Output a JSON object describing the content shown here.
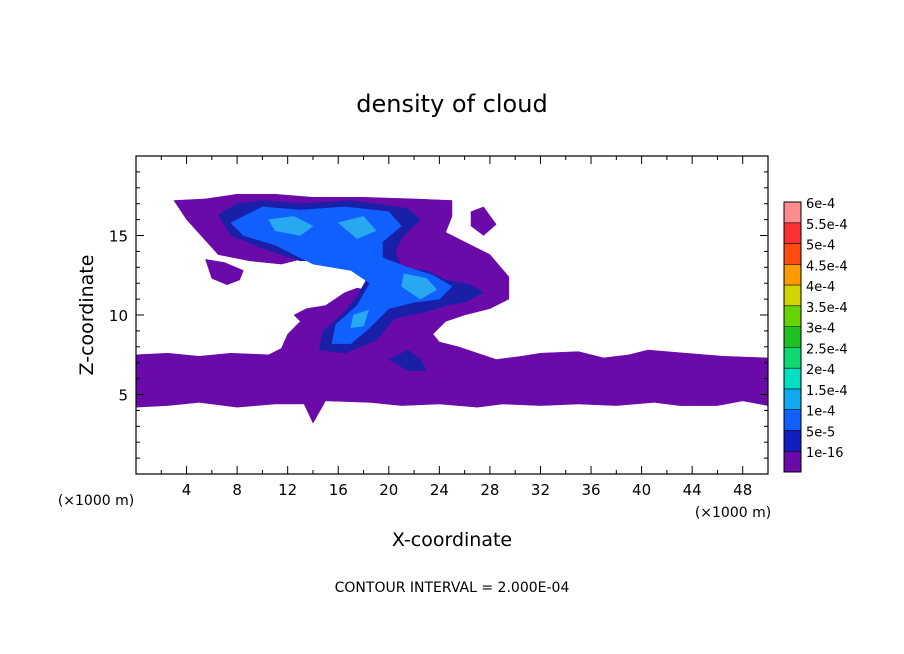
{
  "chart_data": {
    "type": "heatmap",
    "title": "density of cloud",
    "xlabel": "X-coordinate",
    "ylabel": "Z-coordinate",
    "x_unit_label": "(×1000 m)",
    "y_unit_label": "(×1000 m)",
    "xlim": [
      0,
      50
    ],
    "ylim": [
      0,
      20
    ],
    "x_ticks": [
      4,
      8,
      12,
      16,
      20,
      24,
      28,
      32,
      36,
      40,
      44,
      48
    ],
    "y_ticks": [
      5,
      10,
      15
    ],
    "footer": "CONTOUR INTERVAL = 2.000E-04",
    "colorbar": {
      "labels": [
        "6e-4",
        "5.5e-4",
        "5e-4",
        "4.5e-4",
        "4e-4",
        "3.5e-4",
        "3e-4",
        "2.5e-4",
        "2e-4",
        "1.5e-4",
        "1e-4",
        "5e-5",
        "1e-16"
      ],
      "colors": [
        "#ff8c8c",
        "#ff3030",
        "#ff4a10",
        "#ff9a00",
        "#d4d400",
        "#66d400",
        "#20c020",
        "#10d870",
        "#00e0c0",
        "#10a8f0",
        "#1060ff",
        "#1020c0",
        "#6a0aa8"
      ]
    },
    "regions": [
      {
        "name": "cloud-base-1e-16",
        "level": "1e-16",
        "color": "#6a0aa8",
        "polygons": [
          [
            [
              0.0,
              7.5
            ],
            [
              2.5,
              7.6
            ],
            [
              5.0,
              7.4
            ],
            [
              7.5,
              7.6
            ],
            [
              10.5,
              7.5
            ],
            [
              11.5,
              7.9
            ],
            [
              12.0,
              8.8
            ],
            [
              13.0,
              9.6
            ],
            [
              12.5,
              10.0
            ],
            [
              13.5,
              10.4
            ],
            [
              15.0,
              10.6
            ],
            [
              16.5,
              11.4
            ],
            [
              17.5,
              11.7
            ],
            [
              18.5,
              11.5
            ],
            [
              19.0,
              11.0
            ],
            [
              20.0,
              10.0
            ],
            [
              21.0,
              10.4
            ],
            [
              21.5,
              11.4
            ],
            [
              20.5,
              12.2
            ],
            [
              18.5,
              13.0
            ],
            [
              16.0,
              13.8
            ],
            [
              13.5,
              13.6
            ],
            [
              11.5,
              13.2
            ],
            [
              9.0,
              13.4
            ],
            [
              6.5,
              13.8
            ],
            [
              4.0,
              16.0
            ],
            [
              3.0,
              17.2
            ],
            [
              5.5,
              17.3
            ],
            [
              8.0,
              17.6
            ],
            [
              11.0,
              17.6
            ],
            [
              14.0,
              17.4
            ],
            [
              18.0,
              17.4
            ],
            [
              22.0,
              17.3
            ],
            [
              25.0,
              17.2
            ],
            [
              25.0,
              16.2
            ],
            [
              24.5,
              15.2
            ],
            [
              25.5,
              14.8
            ],
            [
              28.0,
              13.8
            ],
            [
              29.5,
              12.4
            ],
            [
              29.5,
              11.0
            ],
            [
              28.0,
              10.4
            ],
            [
              26.0,
              10.0
            ],
            [
              24.5,
              9.6
            ],
            [
              23.5,
              8.8
            ],
            [
              24.0,
              8.3
            ],
            [
              25.5,
              8.0
            ],
            [
              28.5,
              7.2
            ],
            [
              30.5,
              7.4
            ],
            [
              32.0,
              7.6
            ],
            [
              35.0,
              7.7
            ],
            [
              37.0,
              7.3
            ],
            [
              39.0,
              7.5
            ],
            [
              40.5,
              7.8
            ],
            [
              43.5,
              7.6
            ],
            [
              46.5,
              7.4
            ],
            [
              50.0,
              7.3
            ],
            [
              50.0,
              4.3
            ],
            [
              48.0,
              4.6
            ],
            [
              46.0,
              4.3
            ],
            [
              43.0,
              4.3
            ],
            [
              41.0,
              4.5
            ],
            [
              38.0,
              4.3
            ],
            [
              35.0,
              4.4
            ],
            [
              32.0,
              4.3
            ],
            [
              29.0,
              4.4
            ],
            [
              27.0,
              4.2
            ],
            [
              24.0,
              4.4
            ],
            [
              21.0,
              4.3
            ],
            [
              18.5,
              4.5
            ],
            [
              15.0,
              4.6
            ],
            [
              14.0,
              3.2
            ],
            [
              13.3,
              4.4
            ],
            [
              11.0,
              4.4
            ],
            [
              8.0,
              4.2
            ],
            [
              5.0,
              4.5
            ],
            [
              2.5,
              4.3
            ],
            [
              0.0,
              4.2
            ]
          ],
          [
            [
              5.5,
              13.5
            ],
            [
              7.0,
              13.3
            ],
            [
              8.5,
              12.8
            ],
            [
              8.2,
              12.2
            ],
            [
              7.2,
              11.9
            ],
            [
              6.0,
              12.3
            ]
          ],
          [
            [
              26.5,
              16.5
            ],
            [
              27.5,
              16.8
            ],
            [
              28.5,
              15.7
            ],
            [
              27.5,
              15.0
            ],
            [
              26.5,
              15.6
            ]
          ]
        ]
      },
      {
        "name": "cloud-5e-5",
        "level": "5e-5",
        "color": "#1a1fa8",
        "polygons": [
          [
            [
              6.5,
              16.3
            ],
            [
              8.0,
              17.0
            ],
            [
              10.0,
              17.2
            ],
            [
              13.0,
              17.0
            ],
            [
              17.0,
              17.2
            ],
            [
              21.5,
              16.7
            ],
            [
              22.5,
              16.0
            ],
            [
              21.0,
              14.8
            ],
            [
              20.5,
              14.0
            ],
            [
              21.0,
              13.0
            ],
            [
              23.0,
              12.8
            ],
            [
              24.5,
              12.2
            ],
            [
              26.5,
              11.9
            ],
            [
              27.5,
              11.4
            ],
            [
              26.0,
              10.8
            ],
            [
              24.5,
              10.6
            ],
            [
              23.0,
              10.2
            ],
            [
              20.5,
              9.8
            ],
            [
              19.0,
              8.4
            ],
            [
              16.5,
              7.6
            ],
            [
              14.5,
              7.8
            ],
            [
              14.8,
              9.0
            ],
            [
              16.5,
              10.2
            ],
            [
              17.5,
              11.2
            ],
            [
              18.5,
              12.6
            ],
            [
              17.5,
              13.2
            ],
            [
              15.5,
              13.5
            ],
            [
              13.0,
              13.4
            ],
            [
              10.0,
              14.2
            ],
            [
              7.5,
              15.0
            ]
          ],
          [
            [
              21.5,
              7.8
            ],
            [
              22.5,
              7.2
            ],
            [
              23.0,
              6.5
            ],
            [
              21.5,
              6.5
            ],
            [
              20.0,
              7.2
            ]
          ]
        ]
      },
      {
        "name": "cloud-1e-4",
        "level": "1e-4",
        "color": "#1060ff",
        "polygons": [
          [
            [
              7.5,
              15.8
            ],
            [
              10.0,
              16.8
            ],
            [
              13.0,
              16.6
            ],
            [
              16.5,
              16.8
            ],
            [
              20.0,
              16.5
            ],
            [
              21.0,
              15.6
            ],
            [
              19.5,
              14.6
            ],
            [
              19.5,
              13.6
            ],
            [
              21.5,
              13.0
            ],
            [
              23.5,
              12.5
            ],
            [
              25.0,
              11.8
            ],
            [
              24.0,
              11.0
            ],
            [
              22.0,
              10.8
            ],
            [
              20.0,
              10.4
            ],
            [
              18.5,
              9.2
            ],
            [
              17.0,
              8.2
            ],
            [
              15.5,
              8.2
            ],
            [
              15.8,
              9.4
            ],
            [
              17.5,
              10.6
            ],
            [
              18.5,
              12.0
            ],
            [
              17.0,
              12.8
            ],
            [
              14.0,
              13.2
            ],
            [
              11.0,
              14.4
            ],
            [
              8.5,
              15.0
            ]
          ]
        ]
      },
      {
        "name": "cloud-1.5e-4",
        "level": "1.5e-4",
        "color": "#28a8f0",
        "polygons": [
          [
            [
              10.5,
              16.0
            ],
            [
              12.5,
              16.2
            ],
            [
              14.0,
              15.6
            ],
            [
              13.0,
              15.0
            ],
            [
              11.0,
              15.3
            ]
          ],
          [
            [
              16.0,
              15.8
            ],
            [
              18.0,
              16.2
            ],
            [
              19.0,
              15.3
            ],
            [
              17.5,
              14.8
            ]
          ],
          [
            [
              21.2,
              12.6
            ],
            [
              23.0,
              12.3
            ],
            [
              23.8,
              11.6
            ],
            [
              22.5,
              11.0
            ],
            [
              21.0,
              11.8
            ]
          ],
          [
            [
              17.2,
              10.0
            ],
            [
              18.4,
              10.3
            ],
            [
              18.0,
              9.3
            ],
            [
              17.0,
              9.2
            ]
          ]
        ]
      }
    ]
  }
}
